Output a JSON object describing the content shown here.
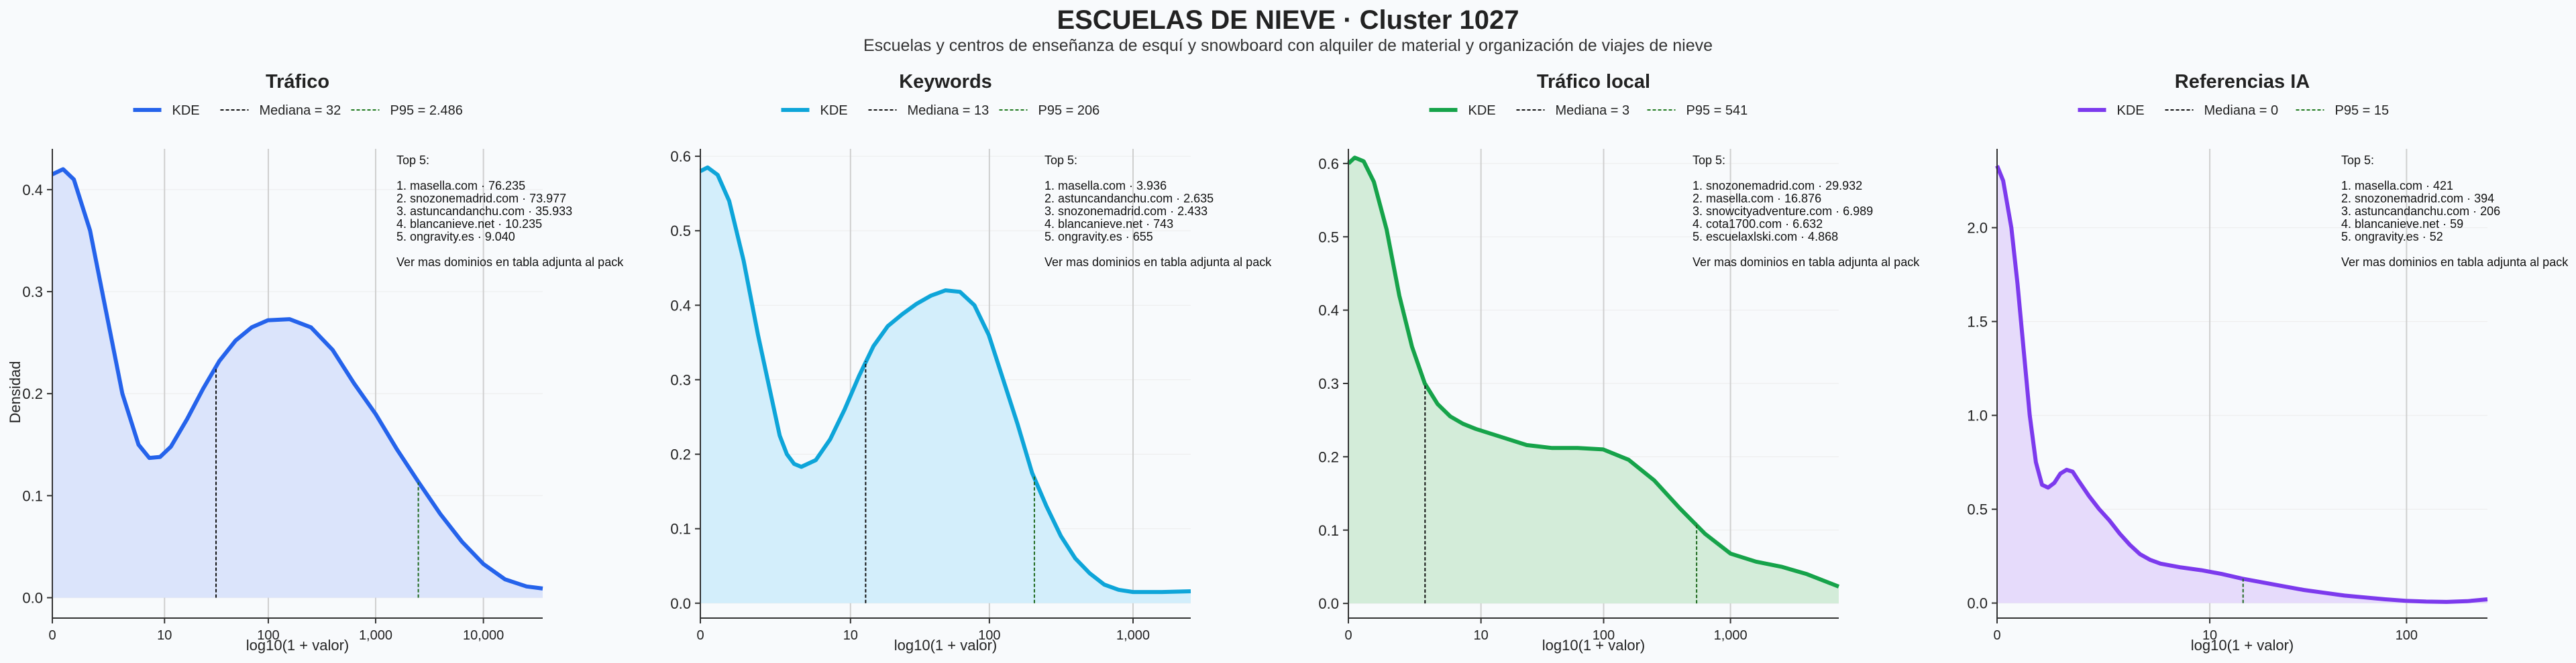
{
  "title": "ESCUELAS DE NIEVE · Cluster 1027",
  "subtitle": "Escuelas y centros de enseñanza de esquí y snowboard con alquiler de material y organización de viajes de nieve",
  "ylabel": "Densidad",
  "legend_kde": "KDE",
  "chart_data": [
    {
      "type": "area",
      "title": "Tráfico",
      "color": "#2563eb",
      "fill": "#dbe4fb",
      "xlabel": "log10(1 + valor)",
      "x_ticks": [
        {
          "v": 0,
          "label": "0"
        },
        {
          "v": 1.041,
          "label": "10"
        },
        {
          "v": 2.004,
          "label": "100"
        },
        {
          "v": 3,
          "label": "1,000"
        },
        {
          "v": 4,
          "label": "10,000"
        }
      ],
      "xlim": [
        0,
        4.55
      ],
      "ylim": [
        -0.02,
        0.44
      ],
      "y_ticks": [
        0,
        0.1,
        0.2,
        0.3,
        0.4
      ],
      "y_tick_labels": [
        "0.0",
        "0.1",
        "0.2",
        "0.3",
        "0.4"
      ],
      "median": {
        "label": "Mediana = 32",
        "x": 1.519,
        "y": 0.225
      },
      "p95": {
        "label": "P95 = 2.486",
        "x": 3.396,
        "y": 0.113
      },
      "kde": [
        [
          0,
          0.415
        ],
        [
          0.1,
          0.42
        ],
        [
          0.2,
          0.41
        ],
        [
          0.35,
          0.36
        ],
        [
          0.5,
          0.28
        ],
        [
          0.65,
          0.2
        ],
        [
          0.8,
          0.15
        ],
        [
          0.9,
          0.137
        ],
        [
          1.0,
          0.138
        ],
        [
          1.1,
          0.148
        ],
        [
          1.25,
          0.175
        ],
        [
          1.4,
          0.205
        ],
        [
          1.55,
          0.232
        ],
        [
          1.7,
          0.252
        ],
        [
          1.85,
          0.265
        ],
        [
          2.0,
          0.272
        ],
        [
          2.2,
          0.273
        ],
        [
          2.4,
          0.265
        ],
        [
          2.6,
          0.243
        ],
        [
          2.8,
          0.21
        ],
        [
          3.0,
          0.18
        ],
        [
          3.2,
          0.145
        ],
        [
          3.4,
          0.113
        ],
        [
          3.6,
          0.082
        ],
        [
          3.8,
          0.055
        ],
        [
          4.0,
          0.033
        ],
        [
          4.2,
          0.018
        ],
        [
          4.4,
          0.011
        ],
        [
          4.55,
          0.009
        ]
      ],
      "top_title": "Top 5:",
      "top5": [
        "1. masella.com · 76.235",
        "2. snozonemadrid.com · 73.977",
        "3. astuncandanchu.com · 35.933",
        "4. blancanieve.net · 10.235",
        "5. ongravity.es · 9.040"
      ],
      "more": "Ver mas dominios en tabla adjunta al pack"
    },
    {
      "type": "area",
      "title": "Keywords",
      "color": "#0ea5d9",
      "fill": "#d3eefb",
      "xlabel": "log10(1 + valor)",
      "x_ticks": [
        {
          "v": 0,
          "label": "0"
        },
        {
          "v": 1.041,
          "label": "10"
        },
        {
          "v": 2.004,
          "label": "100"
        },
        {
          "v": 3,
          "label": "1,000"
        }
      ],
      "xlim": [
        0,
        3.4
      ],
      "ylim": [
        -0.02,
        0.61
      ],
      "y_ticks": [
        0,
        0.1,
        0.2,
        0.3,
        0.4,
        0.5,
        0.6
      ],
      "y_tick_labels": [
        "0.0",
        "0.1",
        "0.2",
        "0.3",
        "0.4",
        "0.5",
        "0.6"
      ],
      "median": {
        "label": "Mediana = 13",
        "x": 1.146,
        "y": 0.325
      },
      "p95": {
        "label": "P95 = 206",
        "x": 2.316,
        "y": 0.17
      },
      "kde": [
        [
          0,
          0.58
        ],
        [
          0.05,
          0.585
        ],
        [
          0.12,
          0.575
        ],
        [
          0.2,
          0.54
        ],
        [
          0.3,
          0.46
        ],
        [
          0.4,
          0.36
        ],
        [
          0.5,
          0.27
        ],
        [
          0.55,
          0.225
        ],
        [
          0.6,
          0.2
        ],
        [
          0.65,
          0.187
        ],
        [
          0.7,
          0.183
        ],
        [
          0.8,
          0.192
        ],
        [
          0.9,
          0.22
        ],
        [
          1.0,
          0.26
        ],
        [
          1.1,
          0.305
        ],
        [
          1.2,
          0.345
        ],
        [
          1.3,
          0.372
        ],
        [
          1.4,
          0.388
        ],
        [
          1.5,
          0.402
        ],
        [
          1.6,
          0.413
        ],
        [
          1.7,
          0.42
        ],
        [
          1.8,
          0.418
        ],
        [
          1.9,
          0.4
        ],
        [
          2.0,
          0.36
        ],
        [
          2.1,
          0.3
        ],
        [
          2.2,
          0.24
        ],
        [
          2.3,
          0.175
        ],
        [
          2.4,
          0.13
        ],
        [
          2.5,
          0.09
        ],
        [
          2.6,
          0.06
        ],
        [
          2.7,
          0.04
        ],
        [
          2.8,
          0.025
        ],
        [
          2.9,
          0.018
        ],
        [
          3.0,
          0.015
        ],
        [
          3.2,
          0.015
        ],
        [
          3.4,
          0.016
        ]
      ],
      "top_title": "Top 5:",
      "top5": [
        "1. masella.com · 3.936",
        "2. astuncandanchu.com · 2.635",
        "3. snozonemadrid.com · 2.433",
        "4. blancanieve.net · 743",
        "5. ongravity.es · 655"
      ],
      "more": "Ver mas dominios en tabla adjunta al pack"
    },
    {
      "type": "area",
      "title": "Tráfico local",
      "color": "#16a34a",
      "fill": "#d3ecd9",
      "xlabel": "log10(1 + valor)",
      "x_ticks": [
        {
          "v": 0,
          "label": "0"
        },
        {
          "v": 1.041,
          "label": "10"
        },
        {
          "v": 2.004,
          "label": "100"
        },
        {
          "v": 3,
          "label": "1,000"
        }
      ],
      "xlim": [
        0,
        3.85
      ],
      "ylim": [
        -0.02,
        0.62
      ],
      "y_ticks": [
        0,
        0.1,
        0.2,
        0.3,
        0.4,
        0.5,
        0.6
      ],
      "y_tick_labels": [
        "0.0",
        "0.1",
        "0.2",
        "0.3",
        "0.4",
        "0.5",
        "0.6"
      ],
      "median": {
        "label": "Mediana = 3",
        "x": 0.602,
        "y": 0.3
      },
      "p95": {
        "label": "P95 = 541",
        "x": 2.734,
        "y": 0.11
      },
      "kde": [
        [
          0,
          0.6
        ],
        [
          0.05,
          0.608
        ],
        [
          0.12,
          0.603
        ],
        [
          0.2,
          0.575
        ],
        [
          0.3,
          0.51
        ],
        [
          0.4,
          0.42
        ],
        [
          0.5,
          0.35
        ],
        [
          0.6,
          0.3
        ],
        [
          0.7,
          0.272
        ],
        [
          0.8,
          0.255
        ],
        [
          0.9,
          0.245
        ],
        [
          1.0,
          0.238
        ],
        [
          1.2,
          0.227
        ],
        [
          1.4,
          0.216
        ],
        [
          1.6,
          0.212
        ],
        [
          1.8,
          0.212
        ],
        [
          2.0,
          0.21
        ],
        [
          2.2,
          0.196
        ],
        [
          2.4,
          0.168
        ],
        [
          2.6,
          0.13
        ],
        [
          2.8,
          0.095
        ],
        [
          3.0,
          0.068
        ],
        [
          3.2,
          0.057
        ],
        [
          3.4,
          0.05
        ],
        [
          3.6,
          0.04
        ],
        [
          3.85,
          0.023
        ]
      ],
      "top_title": "Top 5:",
      "top5": [
        "1. snozonemadrid.com · 29.932",
        "2. masella.com · 16.876",
        "3. snowcityadventure.com · 6.989",
        "4. cota1700.com · 6.632",
        "5. escuelaxlski.com · 4.868"
      ],
      "more": "Ver mas dominios en tabla adjunta al pack"
    },
    {
      "type": "area",
      "title": "Referencias IA",
      "color": "#7c3aed",
      "fill": "#e6dbfb",
      "xlabel": "log10(1 + valor)",
      "x_ticks": [
        {
          "v": 0,
          "label": "0"
        },
        {
          "v": 1.041,
          "label": "10"
        },
        {
          "v": 2.004,
          "label": "100"
        }
      ],
      "xlim": [
        0,
        2.4
      ],
      "ylim": [
        -0.08,
        2.42
      ],
      "y_ticks": [
        0,
        0.5,
        1.0,
        1.5,
        2.0
      ],
      "y_tick_labels": [
        "0.0",
        "0.5",
        "1.0",
        "1.5",
        "2.0"
      ],
      "median": {
        "label": "Mediana = 0",
        "x": 0,
        "y": 0
      },
      "p95": {
        "label": "P95 = 15",
        "x": 1.204,
        "y": 0.13
      },
      "kde": [
        [
          0,
          2.33
        ],
        [
          0.03,
          2.25
        ],
        [
          0.07,
          2.0
        ],
        [
          0.1,
          1.7
        ],
        [
          0.13,
          1.35
        ],
        [
          0.16,
          1.0
        ],
        [
          0.19,
          0.75
        ],
        [
          0.22,
          0.63
        ],
        [
          0.25,
          0.615
        ],
        [
          0.28,
          0.64
        ],
        [
          0.31,
          0.69
        ],
        [
          0.34,
          0.71
        ],
        [
          0.37,
          0.7
        ],
        [
          0.4,
          0.65
        ],
        [
          0.45,
          0.57
        ],
        [
          0.5,
          0.5
        ],
        [
          0.55,
          0.44
        ],
        [
          0.6,
          0.37
        ],
        [
          0.65,
          0.31
        ],
        [
          0.7,
          0.26
        ],
        [
          0.75,
          0.23
        ],
        [
          0.8,
          0.21
        ],
        [
          0.9,
          0.19
        ],
        [
          1.0,
          0.175
        ],
        [
          1.1,
          0.155
        ],
        [
          1.2,
          0.13
        ],
        [
          1.3,
          0.11
        ],
        [
          1.4,
          0.09
        ],
        [
          1.5,
          0.07
        ],
        [
          1.6,
          0.055
        ],
        [
          1.7,
          0.04
        ],
        [
          1.8,
          0.03
        ],
        [
          1.9,
          0.02
        ],
        [
          2.0,
          0.012
        ],
        [
          2.1,
          0.008
        ],
        [
          2.2,
          0.006
        ],
        [
          2.3,
          0.01
        ],
        [
          2.4,
          0.02
        ]
      ],
      "top_title": "Top 5:",
      "top5": [
        "1. masella.com · 421",
        "2. snozonemadrid.com · 394",
        "3. astuncandanchu.com · 206",
        "4. blancanieve.net · 59",
        "5. ongravity.es · 52"
      ],
      "more": "Ver mas dominios en tabla adjunta al pack"
    }
  ]
}
